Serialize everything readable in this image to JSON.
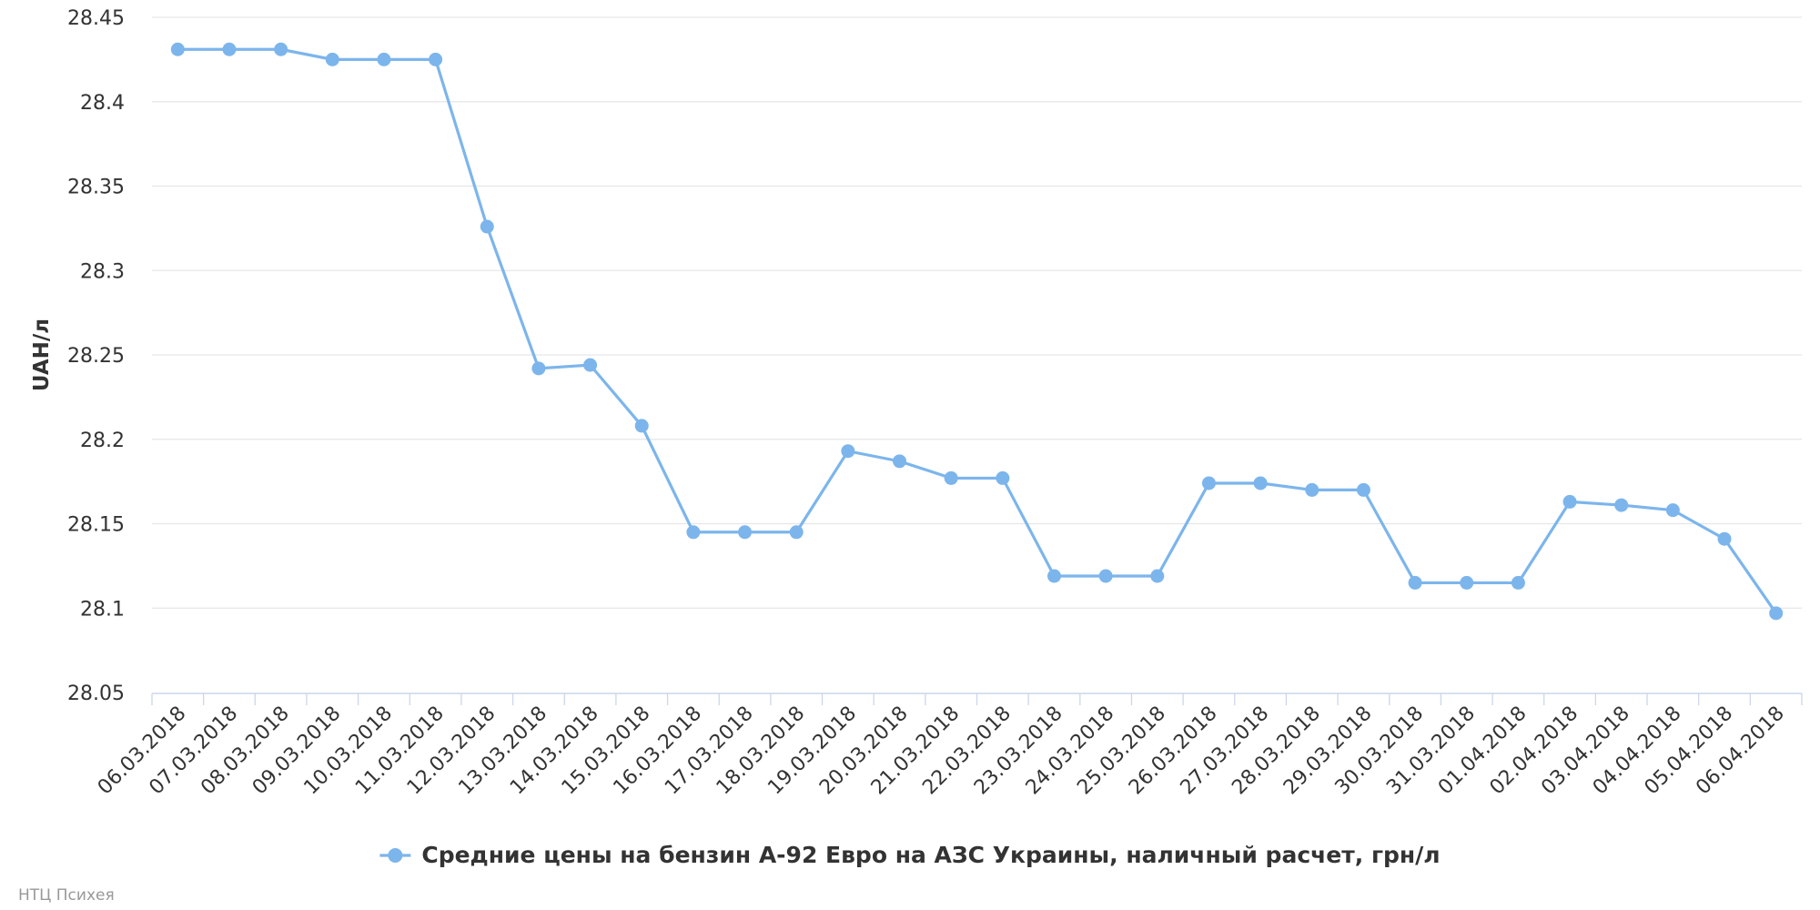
{
  "chart_data": {
    "type": "line",
    "y_label": "UAH/л",
    "categories": [
      "06.03.2018",
      "07.03.2018",
      "08.03.2018",
      "09.03.2018",
      "10.03.2018",
      "11.03.2018",
      "12.03.2018",
      "13.03.2018",
      "14.03.2018",
      "15.03.2018",
      "16.03.2018",
      "17.03.2018",
      "18.03.2018",
      "19.03.2018",
      "20.03.2018",
      "21.03.2018",
      "22.03.2018",
      "23.03.2018",
      "24.03.2018",
      "25.03.2018",
      "26.03.2018",
      "27.03.2018",
      "28.03.2018",
      "29.03.2018",
      "30.03.2018",
      "31.03.2018",
      "01.04.2018",
      "02.04.2018",
      "03.04.2018",
      "04.04.2018",
      "05.04.2018",
      "06.04.2018"
    ],
    "series": [
      {
        "name": "Средние цены на бензин А-92 Евро на АЗС Украины, наличный расчет, грн/л",
        "color": "#7cb5ec",
        "values": [
          28.431,
          28.431,
          28.431,
          28.425,
          28.425,
          28.425,
          28.326,
          28.242,
          28.244,
          28.208,
          28.145,
          28.145,
          28.145,
          28.193,
          28.187,
          28.177,
          28.177,
          28.119,
          28.119,
          28.119,
          28.174,
          28.174,
          28.17,
          28.17,
          28.115,
          28.115,
          28.115,
          28.163,
          28.161,
          28.158,
          28.141,
          28.097
        ]
      }
    ],
    "ylim": [
      28.05,
      28.45
    ],
    "yticks": [
      28.05,
      28.1,
      28.15,
      28.2,
      28.25,
      28.3,
      28.35,
      28.4,
      28.45
    ],
    "grid": true,
    "legend": "bottom",
    "credits": "НТЦ Психея"
  }
}
